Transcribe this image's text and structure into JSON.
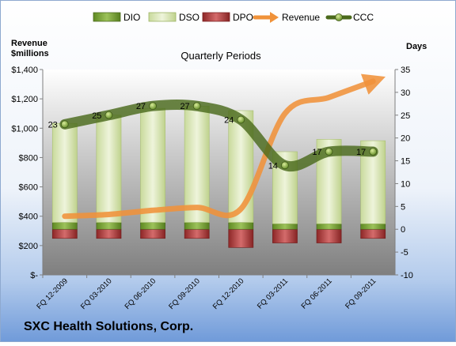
{
  "chart_data": {
    "type": "bar",
    "title": "Quarterly Periods",
    "company": "SXC Health Solutions, Corp.",
    "left_axis": {
      "label_line1": "Revenue",
      "label_line2": "$millions",
      "min": 0,
      "max": 1400,
      "ticks": [
        {
          "value": 0,
          "label": "$-"
        },
        {
          "value": 200,
          "label": "$200"
        },
        {
          "value": 400,
          "label": "$400"
        },
        {
          "value": 600,
          "label": "$600"
        },
        {
          "value": 800,
          "label": "$800"
        },
        {
          "value": 1000,
          "label": "$1,000"
        },
        {
          "value": 1200,
          "label": "$1,200"
        },
        {
          "value": 1400,
          "label": "$1,400"
        }
      ]
    },
    "right_axis": {
      "label": "Days",
      "min": -10,
      "max": 35,
      "ticks": [
        -10,
        -5,
        0,
        5,
        10,
        15,
        20,
        25,
        30,
        35
      ]
    },
    "categories": [
      "FQ 12-2009",
      "FQ 03-2010",
      "FQ 06-2010",
      "FQ 09-2010",
      "FQ 12-2010",
      "FQ 03-2011",
      "FQ 06-2011",
      "FQ 09-2011"
    ],
    "series": [
      {
        "name": "DIO",
        "axis": "right",
        "color": "#6f9a2c",
        "values": [
          1.5,
          1.5,
          1.5,
          1.5,
          1.5,
          1.2,
          1.2,
          1.2
        ]
      },
      {
        "name": "DSO",
        "axis": "right",
        "color": "#d7e4b5",
        "values": [
          21.7,
          23.5,
          25,
          25.5,
          24.5,
          15.8,
          18.5,
          18.2
        ]
      },
      {
        "name": "DPO",
        "axis": "right",
        "color": "#b03a3a",
        "values": [
          -2,
          -2,
          -2,
          -2,
          -4,
          -3,
          -3,
          -2
        ]
      },
      {
        "name": "Revenue",
        "axis": "left",
        "color": "#f0923a",
        "values": [
          400,
          412,
          440,
          460,
          450,
          1100,
          1210,
          1320
        ]
      },
      {
        "name": "CCC",
        "axis": "right",
        "color": "#4b6a1c",
        "values": [
          23,
          25,
          27,
          27,
          24,
          14,
          17,
          17
        ],
        "labels": [
          "23",
          "25",
          "27",
          "27",
          "24",
          "14",
          "17",
          "17"
        ]
      }
    ],
    "legend_position": "top",
    "grid": false
  }
}
